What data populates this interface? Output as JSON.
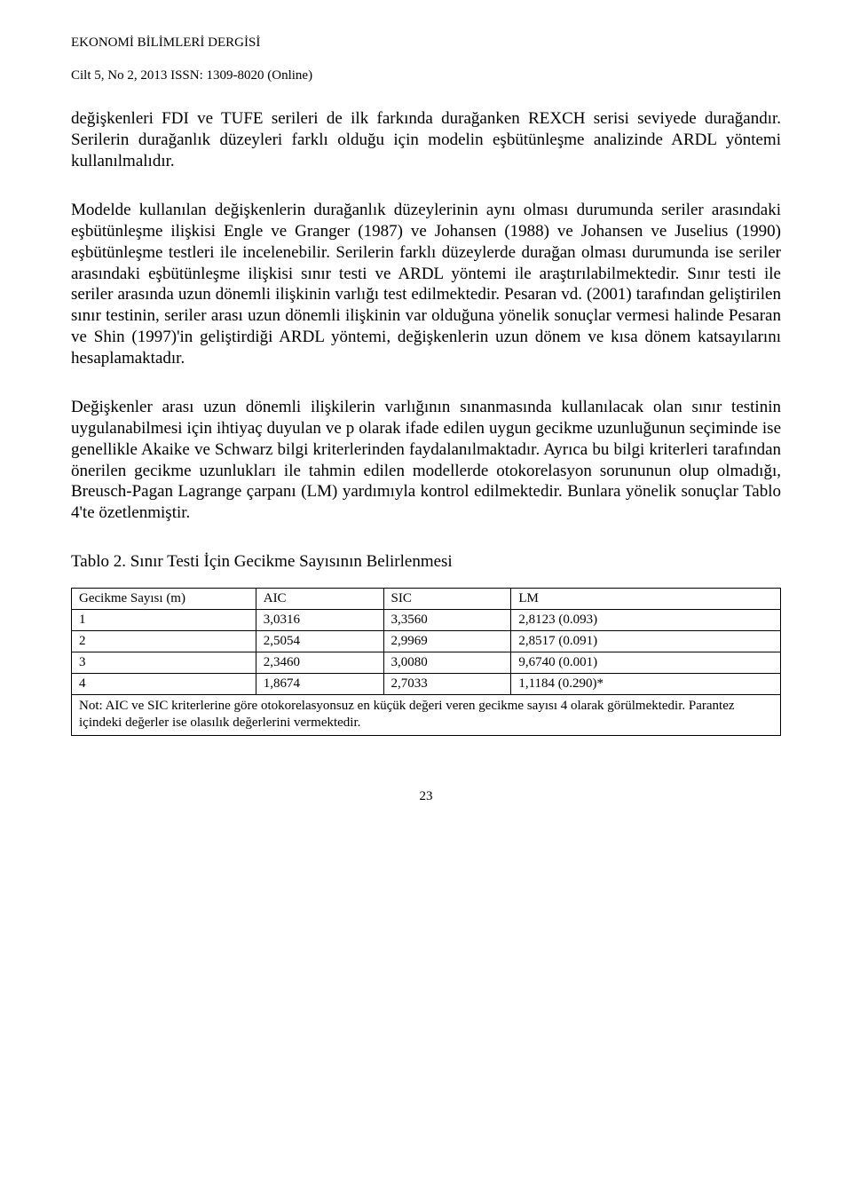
{
  "header": {
    "journal_title": "EKONOMİ BİLİMLERİ DERGİSİ",
    "journal_sub": "Cilt 5, No 2, 2013  ISSN: 1309-8020 (Online)"
  },
  "paragraphs": {
    "p1": "değişkenleri FDI ve TUFE serileri de ilk farkında durağanken REXCH serisi seviyede durağandır. Serilerin durağanlık düzeyleri farklı olduğu için modelin eşbütünleşme analizinde ARDL yöntemi kullanılmalıdır.",
    "p2": "Modelde kullanılan değişkenlerin durağanlık düzeylerinin aynı olması durumunda seriler arasındaki eşbütünleşme ilişkisi Engle ve Granger (1987) ve Johansen (1988) ve Johansen ve Juselius (1990) eşbütünleşme testleri ile incelenebilir. Serilerin farklı düzeylerde durağan olması durumunda ise seriler arasındaki eşbütünleşme ilişkisi sınır testi ve ARDL yöntemi ile araştırılabilmektedir. Sınır testi ile seriler arasında uzun dönemli ilişkinin varlığı test edilmektedir. Pesaran vd. (2001) tarafından geliştirilen sınır testinin, seriler arası uzun dönemli ilişkinin var olduğuna yönelik sonuçlar vermesi halinde Pesaran ve Shin (1997)'in geliştirdiği ARDL yöntemi, değişkenlerin uzun dönem ve kısa dönem katsayılarını hesaplamaktadır.",
    "p3": "Değişkenler arası uzun dönemli ilişkilerin varlığının sınanmasında kullanılacak olan sınır testinin uygulanabilmesi için ihtiyaç duyulan ve p olarak ifade edilen uygun gecikme uzunluğunun seçiminde ise genellikle Akaike ve Schwarz bilgi kriterlerinden faydalanılmaktadır. Ayrıca bu bilgi kriterleri tarafından önerilen gecikme uzunlukları ile tahmin edilen modellerde otokorelasyon sorununun olup olmadığı, Breusch-Pagan Lagrange çarpanı (LM) yardımıyla kontrol edilmektedir. Bunlara yönelik sonuçlar Tablo 4'te özetlenmiştir."
  },
  "table": {
    "title": "Tablo 2. Sınır Testi İçin Gecikme Sayısının Belirlenmesi",
    "columns": {
      "c1": "Gecikme Sayısı (m)",
      "c2": "AIC",
      "c3": "SIC",
      "c4": "LM"
    },
    "rows": [
      {
        "m": "1",
        "aic": "3,0316",
        "sic": "3,3560",
        "lm": "2,8123 (0.093)"
      },
      {
        "m": "2",
        "aic": "2,5054",
        "sic": "2,9969",
        "lm": "2,8517 (0.091)"
      },
      {
        "m": "3",
        "aic": "2,3460",
        "sic": "3,0080",
        "lm": "9,6740 (0.001)"
      },
      {
        "m": "4",
        "aic": "1,8674",
        "sic": "2,7033",
        "lm": "1,1184 (0.290)*"
      }
    ],
    "note": "Not: AIC ve SIC kriterlerine göre otokorelasyonsuz en küçük değeri veren gecikme sayısı 4 olarak görülmektedir. Parantez içindeki değerler ise olasılık değerlerini vermektedir."
  },
  "page_number": "23"
}
